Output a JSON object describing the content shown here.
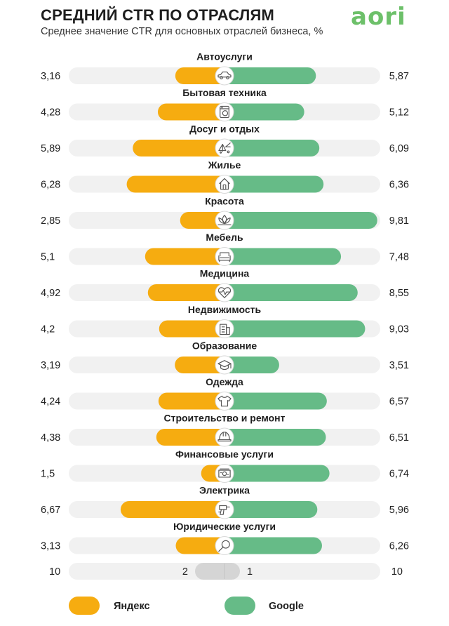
{
  "header": {
    "title": "СРЕДНИЙ CTR ПО ОТРАСЛЯМ",
    "subtitle": "Среднее значение CTR для основных отраслей бизнеса, %",
    "logo": "aori"
  },
  "colors": {
    "yandex": "#f6ac10",
    "google": "#66bb87",
    "track": "#f1f1f1",
    "icon_stroke": "#555555"
  },
  "chart_data": {
    "type": "bar",
    "categories": [
      "Автоуслуги",
      "Бытовая техника",
      "Досуг и отдых",
      "Жилье",
      "Красота",
      "Мебель",
      "Медицина",
      "Недвижимость",
      "Образование",
      "Одежда",
      "Строительство и ремонт",
      "Финансовые услуги",
      "Электрика",
      "Юридические услуги"
    ],
    "series": [
      {
        "name": "Яндекс",
        "values": [
          3.16,
          4.28,
          5.89,
          6.28,
          2.85,
          5.1,
          4.92,
          4.2,
          3.19,
          4.24,
          4.38,
          1.5,
          6.67,
          3.13
        ],
        "labels": [
          "3,16",
          "4,28",
          "5,89",
          "6,28",
          "2,85",
          "5,1",
          "4,92",
          "4,2",
          "3,19",
          "4,24",
          "4,38",
          "1,5",
          "6,67",
          "3,13"
        ]
      },
      {
        "name": "Google",
        "values": [
          5.87,
          5.12,
          6.09,
          6.36,
          9.81,
          7.48,
          8.55,
          9.03,
          3.51,
          6.57,
          6.51,
          6.74,
          5.96,
          6.26
        ],
        "labels": [
          "5,87",
          "5,12",
          "6,09",
          "6,36",
          "9,81",
          "7,48",
          "8,55",
          "9,03",
          "3,51",
          "6,57",
          "6,51",
          "6,74",
          "5,96",
          "6,26"
        ]
      }
    ],
    "icons": [
      "car-icon",
      "washing-machine-icon",
      "leisure-icon",
      "house-icon",
      "lotus-icon",
      "sofa-icon",
      "heart-pulse-icon",
      "building-icon",
      "graduation-cap-icon",
      "tshirt-icon",
      "hard-hat-icon",
      "money-icon",
      "drill-icon",
      "magnifier-icon"
    ],
    "xlim": [
      0,
      10
    ],
    "scale": {
      "left_max": "10",
      "left_mid": "2",
      "right_mid": "1",
      "right_max": "10"
    },
    "legend": [
      "Яндекс",
      "Google"
    ],
    "legend_position": "bottom",
    "grid": false
  }
}
